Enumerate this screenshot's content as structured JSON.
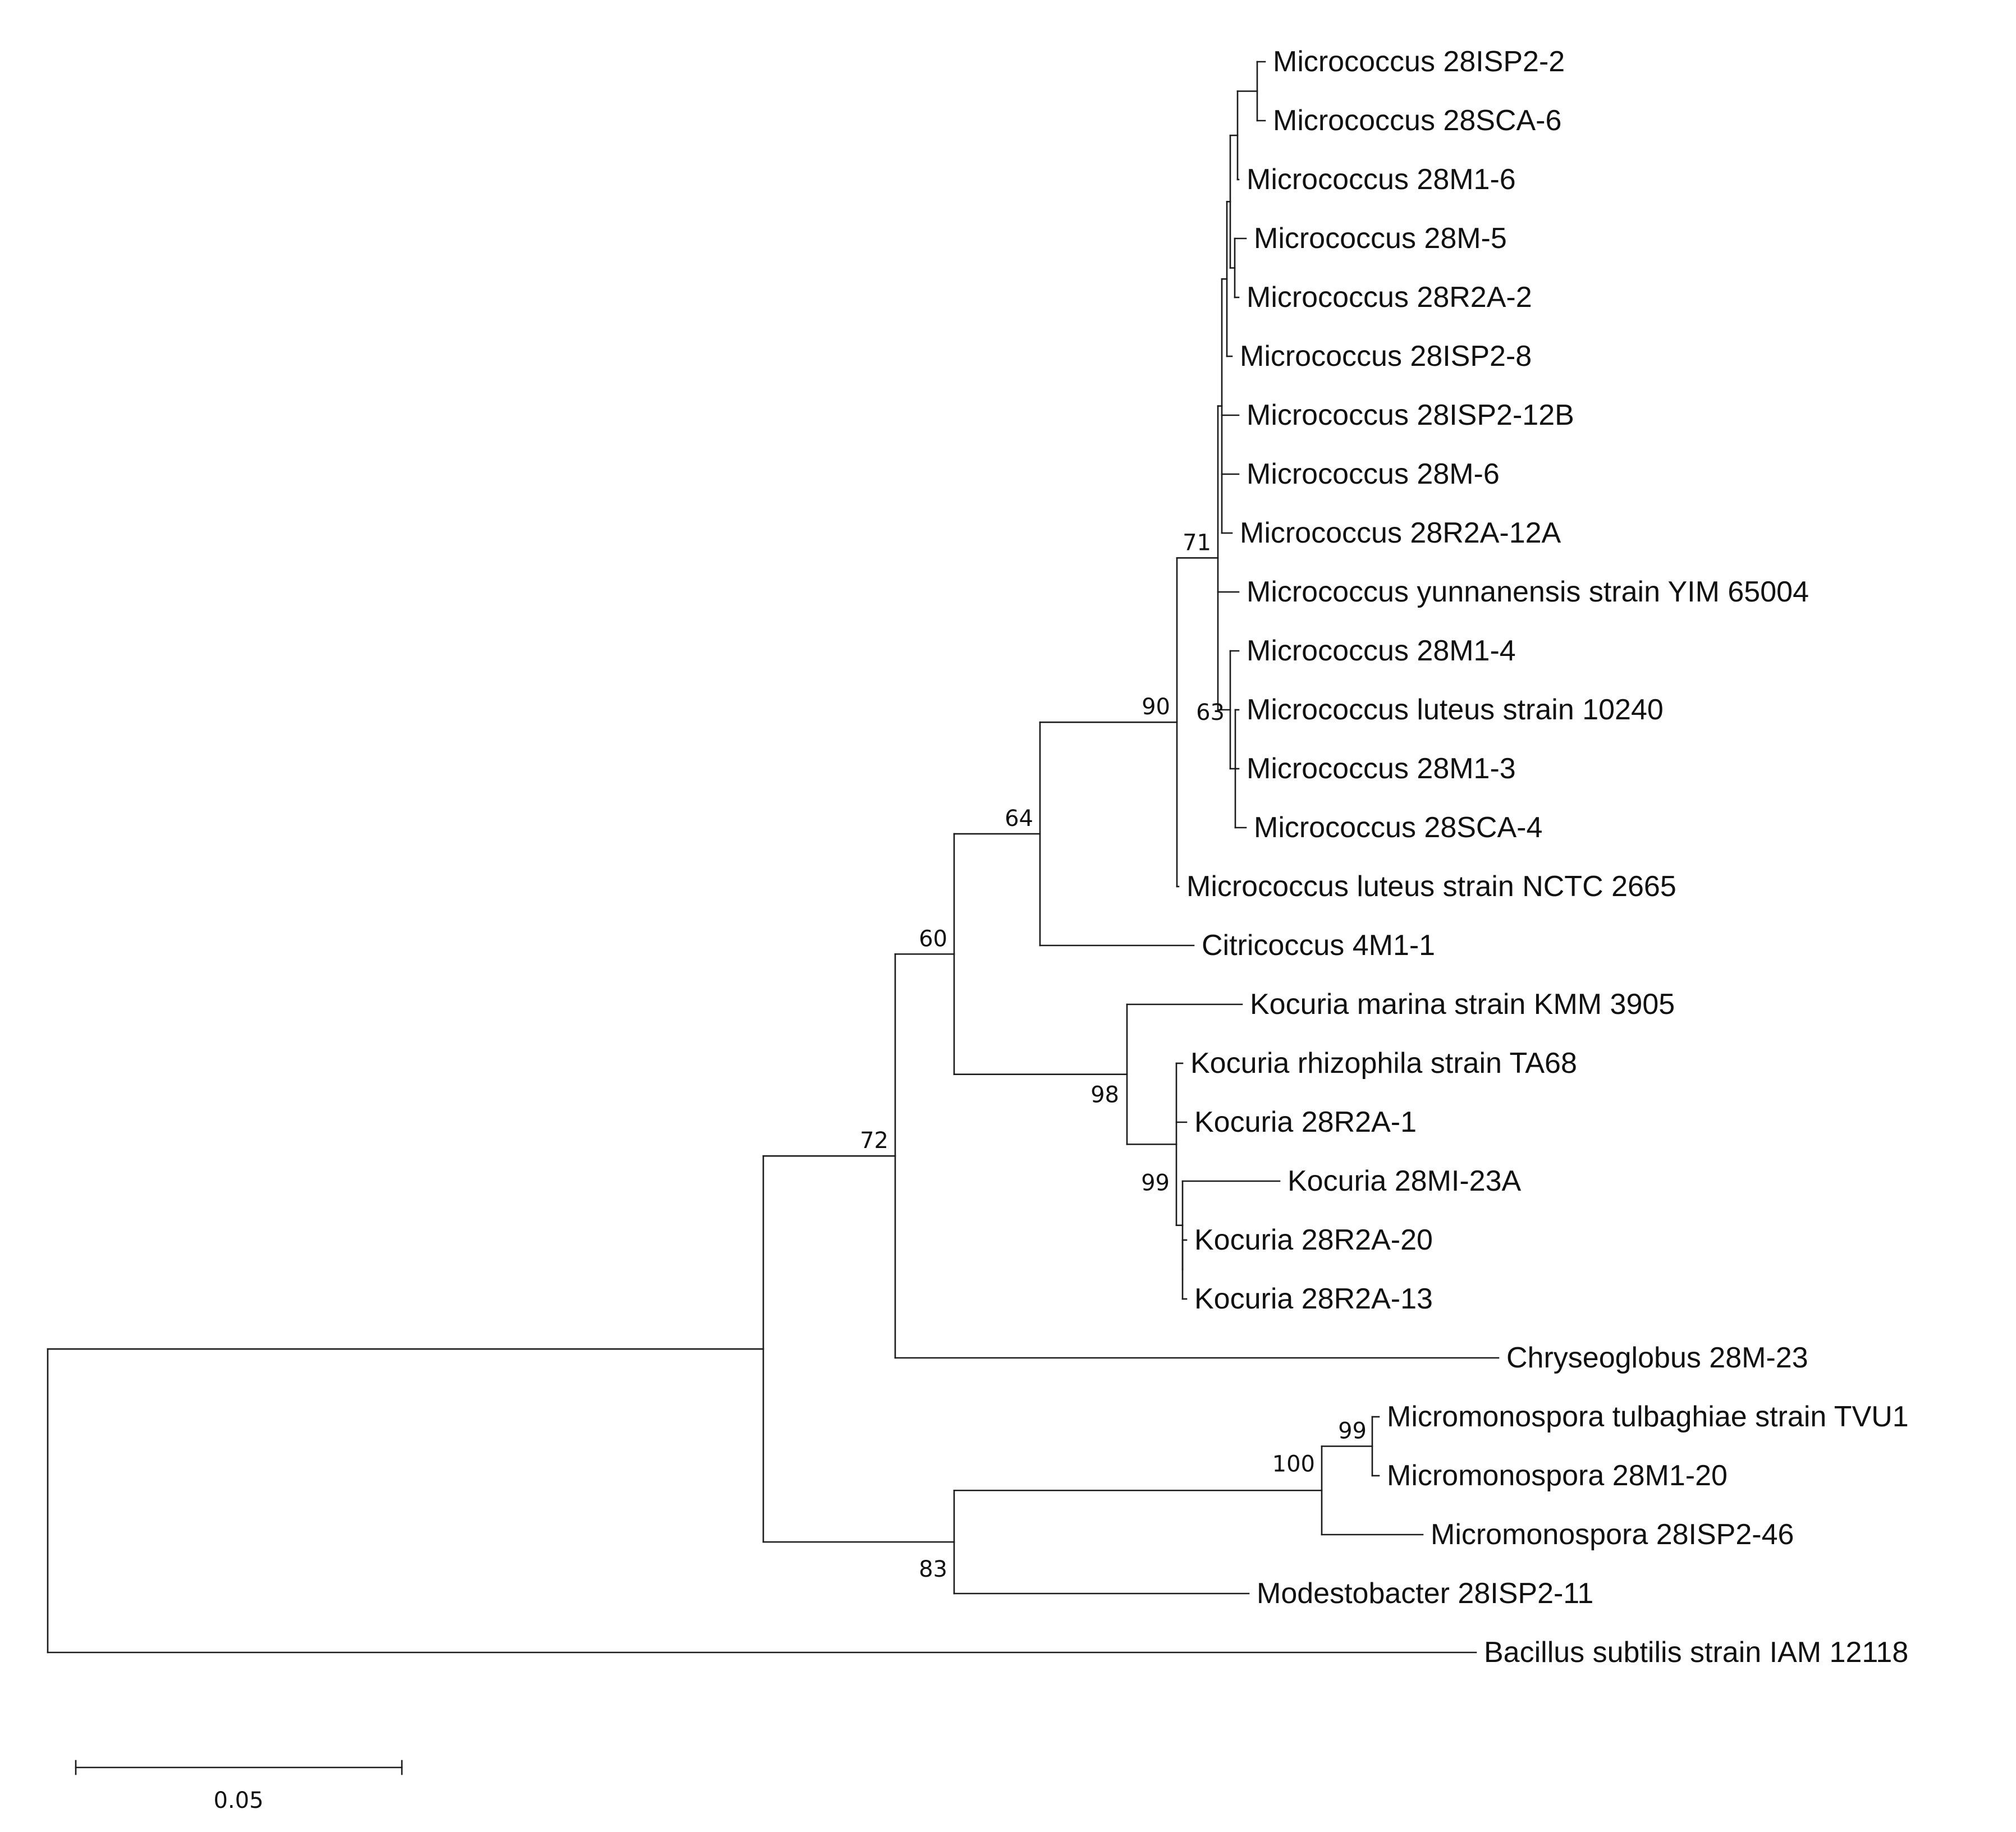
{
  "figure": {
    "type": "phylogenetic-tree",
    "method_hint": "neighbor-joining with bootstrap values"
  },
  "taxa": [
    "Micrococcus 28ISP2-2",
    "Micrococcus 28SCA-6",
    "Micrococcus 28M1-6",
    "Micrococcus 28M-5",
    "Micrococcus 28R2A-2",
    "Micrococcus 28ISP2-8",
    "Micrococcus 28ISP2-12B",
    "Micrococcus 28M-6",
    "Micrococcus 28R2A-12A",
    "Micrococcus yunnanensis strain YIM 65004",
    "Micrococcus 28M1-4",
    "Micrococcus luteus strain 10240",
    "Micrococcus 28M1-3",
    "Micrococcus 28SCA-4",
    "Micrococcus luteus strain NCTC 2665",
    "Citricoccus 4M1-1",
    "Kocuria marina strain KMM 3905",
    "Kocuria rhizophila strain TA68",
    "Kocuria 28R2A-1",
    "Kocuria 28MI-23A",
    "Kocuria 28R2A-20",
    "Kocuria 28R2A-13",
    "Chryseoglobus 28M-23",
    "Micromonospora tulbaghiae strain TVU1",
    "Micromonospora 28M1-20",
    "Micromonospora 28ISP2-46",
    "Modestobacter 28ISP2-11",
    "Bacillus subtilis strain IAM 12118"
  ],
  "bootstrap": {
    "micrococcus_core": "71",
    "micrococcus_clade": "90",
    "micrococcaceae": "64",
    "micrococcaceae_kocuria": "60",
    "micrococcales": "72",
    "luteus_subclade": "63",
    "kocuria_clade": "98",
    "kocuria_subclade": "99",
    "micromonospora_pair": "99",
    "micromonospora_clade": "100",
    "micromonospora_modestobacter": "83"
  },
  "scale_bar": {
    "value": 0.05,
    "label": "0.05"
  }
}
